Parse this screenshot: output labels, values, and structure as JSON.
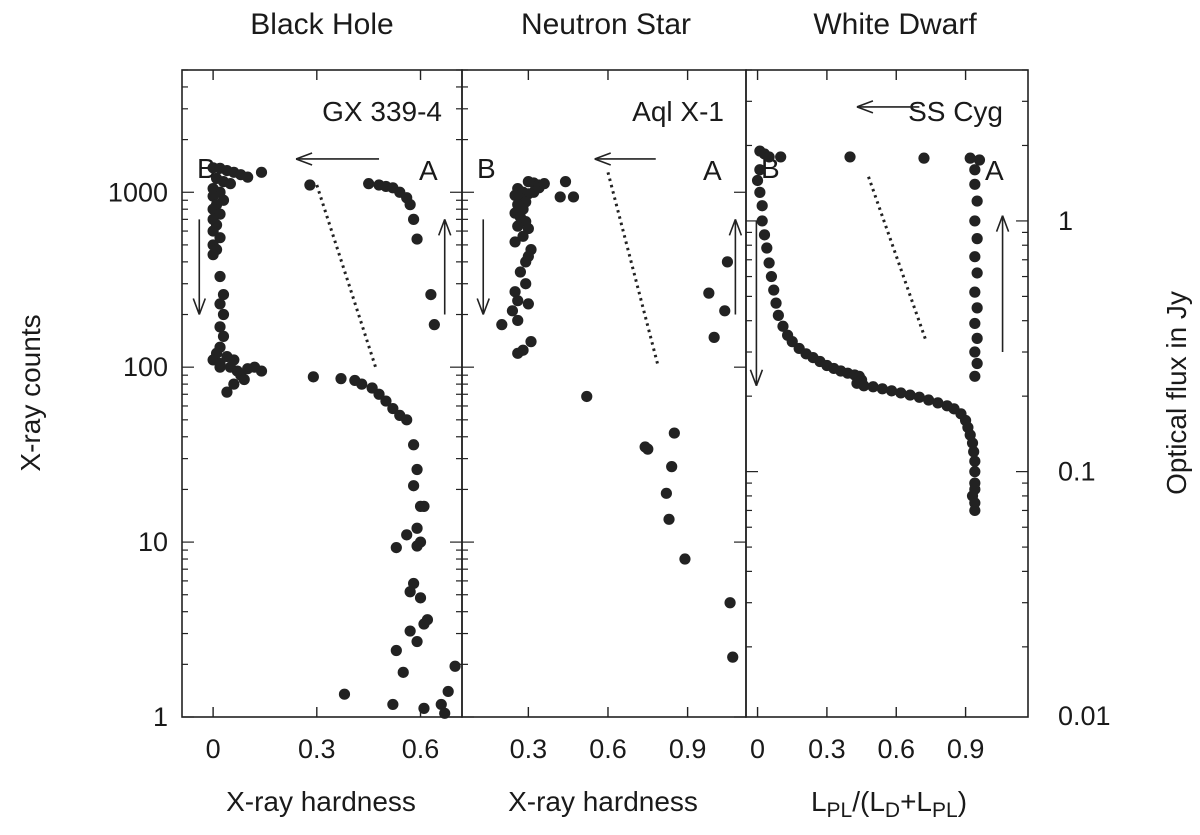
{
  "figure": {
    "ylabel_left": "X-ray counts",
    "ylabel_right": "Optical flux in Jy",
    "y_left_scale": "log",
    "y_left_ylim": [
      1,
      5000
    ],
    "y_left_ticks": [
      1,
      10,
      100,
      1000
    ],
    "y_left_tick_labels": [
      "1",
      "10",
      "100",
      "1000"
    ],
    "y_right_scale": "log",
    "y_right_ticks": [
      0.01,
      0.1,
      1
    ],
    "y_right_tick_labels": [
      "0.01",
      "0.1",
      "1"
    ],
    "x_tick_labels": [
      "0",
      "0.3",
      "0.6",
      "0.9"
    ],
    "state_labels": {
      "start": "A",
      "end": "B"
    },
    "grid": false,
    "legend": "none"
  },
  "chart_data": [
    {
      "type": "scatter",
      "title": "Black Hole",
      "source": "GX 339-4",
      "xlabel": "X-ray hardness",
      "ylabel": "X-ray counts",
      "xlim": [
        -0.09,
        0.72
      ],
      "ylim": [
        1,
        5000
      ],
      "x_ticks": [
        0,
        0.3,
        0.6
      ],
      "x_tick_labels": [
        "0",
        "0.3",
        "0.6"
      ],
      "points": [
        [
          0.28,
          1100
        ],
        [
          0.45,
          1120
        ],
        [
          0.48,
          1100
        ],
        [
          0.5,
          1080
        ],
        [
          0.52,
          1060
        ],
        [
          0.54,
          1000
        ],
        [
          0.56,
          930
        ],
        [
          0.57,
          850
        ],
        [
          0.58,
          700
        ],
        [
          0.59,
          540
        ],
        [
          0.63,
          260
        ],
        [
          0.64,
          175
        ],
        [
          0.0,
          1380
        ],
        [
          0.02,
          1370
        ],
        [
          0.04,
          1330
        ],
        [
          0.06,
          1300
        ],
        [
          0.08,
          1260
        ],
        [
          0.1,
          1220
        ],
        [
          0.14,
          1300
        ],
        [
          0.01,
          1200
        ],
        [
          0.03,
          1150
        ],
        [
          0.05,
          1120
        ],
        [
          0.0,
          1050
        ],
        [
          0.02,
          1000
        ],
        [
          0.0,
          950
        ],
        [
          0.03,
          900
        ],
        [
          0.01,
          850
        ],
        [
          0.0,
          800
        ],
        [
          0.02,
          750
        ],
        [
          0.0,
          700
        ],
        [
          0.01,
          650
        ],
        [
          0.0,
          600
        ],
        [
          0.02,
          550
        ],
        [
          0.0,
          500
        ],
        [
          0.01,
          470
        ],
        [
          0.0,
          440
        ],
        [
          0.02,
          330
        ],
        [
          0.03,
          260
        ],
        [
          0.02,
          230
        ],
        [
          0.03,
          200
        ],
        [
          0.02,
          170
        ],
        [
          0.03,
          150
        ],
        [
          0.02,
          130
        ],
        [
          0.01,
          120
        ],
        [
          0.0,
          110
        ],
        [
          0.02,
          100
        ],
        [
          0.04,
          115
        ],
        [
          0.06,
          110
        ],
        [
          0.05,
          100
        ],
        [
          0.07,
          95
        ],
        [
          0.08,
          90
        ],
        [
          0.1,
          98
        ],
        [
          0.12,
          100
        ],
        [
          0.14,
          95
        ],
        [
          0.09,
          85
        ],
        [
          0.06,
          80
        ],
        [
          0.04,
          72
        ],
        [
          0.02,
          105
        ],
        [
          0.29,
          88
        ],
        [
          0.37,
          86
        ],
        [
          0.41,
          84
        ],
        [
          0.43,
          80
        ],
        [
          0.46,
          76
        ],
        [
          0.48,
          70
        ],
        [
          0.5,
          64
        ],
        [
          0.52,
          58
        ],
        [
          0.54,
          53
        ],
        [
          0.56,
          50
        ],
        [
          0.58,
          36
        ],
        [
          0.59,
          26
        ],
        [
          0.58,
          21
        ],
        [
          0.6,
          16
        ],
        [
          0.61,
          16
        ],
        [
          0.56,
          11
        ],
        [
          0.59,
          12
        ],
        [
          0.6,
          10
        ],
        [
          0.59,
          9.5
        ],
        [
          0.53,
          9.3
        ],
        [
          0.57,
          5.2
        ],
        [
          0.6,
          4.8
        ],
        [
          0.58,
          5.8
        ],
        [
          0.62,
          3.6
        ],
        [
          0.61,
          3.4
        ],
        [
          0.57,
          3.1
        ],
        [
          0.53,
          2.4
        ],
        [
          0.55,
          1.8
        ],
        [
          0.59,
          2.7
        ],
        [
          0.38,
          1.35
        ],
        [
          0.52,
          1.18
        ],
        [
          0.61,
          1.12
        ],
        [
          0.66,
          1.18
        ],
        [
          0.68,
          1.4
        ],
        [
          0.7,
          1.95
        ],
        [
          0.67,
          1.05
        ]
      ],
      "trend_line": [
        [
          0.3,
          1100
        ],
        [
          0.47,
          100
        ]
      ],
      "arrows": [
        {
          "from": [
            0.48,
            1550
          ],
          "to": [
            0.24,
            1550
          ],
          "direction": "left"
        },
        {
          "from": [
            -0.04,
            700
          ],
          "to": [
            -0.04,
            200
          ],
          "direction": "down"
        },
        {
          "from": [
            0.67,
            200
          ],
          "to": [
            0.67,
            700
          ],
          "direction": "up"
        }
      ]
    },
    {
      "type": "scatter",
      "title": "Neutron Star",
      "source": "Aql X-1",
      "xlabel": "X-ray hardness",
      "ylabel": "X-ray counts",
      "xlim": [
        0.05,
        1.12
      ],
      "ylim": [
        1,
        5000
      ],
      "x_ticks": [
        0.3,
        0.6,
        0.9
      ],
      "x_tick_labels": [
        "0.3",
        "0.6",
        "0.9"
      ],
      "points": [
        [
          0.3,
          1150
        ],
        [
          0.32,
          1130
        ],
        [
          0.34,
          1100
        ],
        [
          0.26,
          1050
        ],
        [
          0.28,
          1000
        ],
        [
          0.3,
          980
        ],
        [
          0.25,
          960
        ],
        [
          0.27,
          920
        ],
        [
          0.29,
          880
        ],
        [
          0.26,
          850
        ],
        [
          0.28,
          800
        ],
        [
          0.25,
          760
        ],
        [
          0.27,
          720
        ],
        [
          0.29,
          680
        ],
        [
          0.26,
          640
        ],
        [
          0.3,
          620
        ],
        [
          0.28,
          560
        ],
        [
          0.25,
          520
        ],
        [
          0.32,
          1000
        ],
        [
          0.34,
          1060
        ],
        [
          0.36,
          1120
        ],
        [
          0.44,
          1150
        ],
        [
          0.42,
          940
        ],
        [
          0.47,
          940
        ],
        [
          0.31,
          470
        ],
        [
          0.3,
          430
        ],
        [
          0.29,
          400
        ],
        [
          0.27,
          350
        ],
        [
          0.29,
          300
        ],
        [
          0.25,
          270
        ],
        [
          0.26,
          240
        ],
        [
          0.24,
          210
        ],
        [
          0.3,
          230
        ],
        [
          0.2,
          175
        ],
        [
          0.26,
          185
        ],
        [
          0.31,
          140
        ],
        [
          0.28,
          125
        ],
        [
          0.26,
          120
        ],
        [
          0.52,
          68
        ],
        [
          1.05,
          400
        ],
        [
          0.98,
          265
        ],
        [
          1.04,
          210
        ],
        [
          1.0,
          148
        ],
        [
          0.74,
          35
        ],
        [
          0.75,
          34
        ],
        [
          0.85,
          42
        ],
        [
          0.84,
          27
        ],
        [
          0.82,
          19
        ],
        [
          0.83,
          13.5
        ],
        [
          0.89,
          8
        ],
        [
          1.06,
          4.5
        ],
        [
          1.07,
          2.2
        ]
      ],
      "trend_line": [
        [
          0.6,
          1300
        ],
        [
          0.79,
          100
        ]
      ],
      "arrows": [
        {
          "from": [
            0.78,
            1550
          ],
          "to": [
            0.55,
            1550
          ],
          "direction": "left"
        },
        {
          "from": [
            0.13,
            700
          ],
          "to": [
            0.13,
            200
          ],
          "direction": "down"
        },
        {
          "from": [
            1.08,
            200
          ],
          "to": [
            1.08,
            700
          ],
          "direction": "up"
        }
      ]
    },
    {
      "type": "scatter",
      "title": "White Dwarf",
      "source": "SS Cyg",
      "xlabel": "LPL/(LD+LPL)",
      "xlabel_parts": {
        "main1": "L",
        "sub1": "PL",
        "main2": "/(L",
        "sub2": "D",
        "main3": "+L",
        "sub3": "PL",
        "main4": ")"
      },
      "ylabel": "Optical flux in Jy",
      "xlim": [
        -0.05,
        1.17
      ],
      "ylim": [
        0.0105,
        4
      ],
      "x_ticks": [
        0,
        0.3,
        0.6,
        0.9
      ],
      "x_tick_labels": [
        "0",
        "0.3",
        "0.6",
        "0.9"
      ],
      "points": [
        [
          0.01,
          1.9
        ],
        [
          0.03,
          1.85
        ],
        [
          0.05,
          1.8
        ],
        [
          0.1,
          1.8
        ],
        [
          0.4,
          1.8
        ],
        [
          0.72,
          1.78
        ],
        [
          0.92,
          1.78
        ],
        [
          0.96,
          1.75
        ],
        [
          0.01,
          1.6
        ],
        [
          0.0,
          1.45
        ],
        [
          0.01,
          1.3
        ],
        [
          0.02,
          1.15
        ],
        [
          0.02,
          1.0
        ],
        [
          0.03,
          0.88
        ],
        [
          0.04,
          0.78
        ],
        [
          0.05,
          0.68
        ],
        [
          0.06,
          0.6
        ],
        [
          0.07,
          0.53
        ],
        [
          0.08,
          0.47
        ],
        [
          0.09,
          0.42
        ],
        [
          0.11,
          0.38
        ],
        [
          0.13,
          0.35
        ],
        [
          0.15,
          0.33
        ],
        [
          0.18,
          0.31
        ],
        [
          0.21,
          0.295
        ],
        [
          0.24,
          0.285
        ],
        [
          0.27,
          0.275
        ],
        [
          0.3,
          0.265
        ],
        [
          0.33,
          0.258
        ],
        [
          0.36,
          0.252
        ],
        [
          0.39,
          0.247
        ],
        [
          0.42,
          0.243
        ],
        [
          0.44,
          0.24
        ],
        [
          0.45,
          0.232
        ],
        [
          0.43,
          0.225
        ],
        [
          0.46,
          0.22
        ],
        [
          0.5,
          0.218
        ],
        [
          0.54,
          0.214
        ],
        [
          0.58,
          0.21
        ],
        [
          0.62,
          0.206
        ],
        [
          0.66,
          0.202
        ],
        [
          0.7,
          0.198
        ],
        [
          0.74,
          0.193
        ],
        [
          0.78,
          0.188
        ],
        [
          0.82,
          0.183
        ],
        [
          0.85,
          0.178
        ],
        [
          0.88,
          0.17
        ],
        [
          0.9,
          0.16
        ],
        [
          0.91,
          0.15
        ],
        [
          0.92,
          0.14
        ],
        [
          0.93,
          0.13
        ],
        [
          0.935,
          0.12
        ],
        [
          0.94,
          0.11
        ],
        [
          0.94,
          0.1
        ],
        [
          0.94,
          0.09
        ],
        [
          0.94,
          0.085
        ],
        [
          0.93,
          0.08
        ],
        [
          0.94,
          0.075
        ],
        [
          0.94,
          0.07
        ],
        [
          0.94,
          1.6
        ],
        [
          0.94,
          1.4
        ],
        [
          0.95,
          1.2
        ],
        [
          0.94,
          1.0
        ],
        [
          0.95,
          0.85
        ],
        [
          0.94,
          0.72
        ],
        [
          0.95,
          0.62
        ],
        [
          0.94,
          0.52
        ],
        [
          0.95,
          0.45
        ],
        [
          0.94,
          0.39
        ],
        [
          0.95,
          0.34
        ],
        [
          0.94,
          0.3
        ],
        [
          0.95,
          0.27
        ],
        [
          0.94,
          0.24
        ]
      ],
      "trend_line": [
        [
          0.48,
          1.5
        ],
        [
          0.73,
          0.33
        ]
      ],
      "arrows": [
        {
          "from": [
            0.7,
            2.85
          ],
          "to": [
            0.43,
            2.85
          ],
          "direction": "left"
        },
        {
          "from": [
            -0.005,
            1.0
          ],
          "to": [
            -0.005,
            0.22
          ],
          "direction": "down"
        },
        {
          "from": [
            1.06,
            0.3
          ],
          "to": [
            1.06,
            1.05
          ],
          "direction": "up"
        }
      ]
    }
  ]
}
